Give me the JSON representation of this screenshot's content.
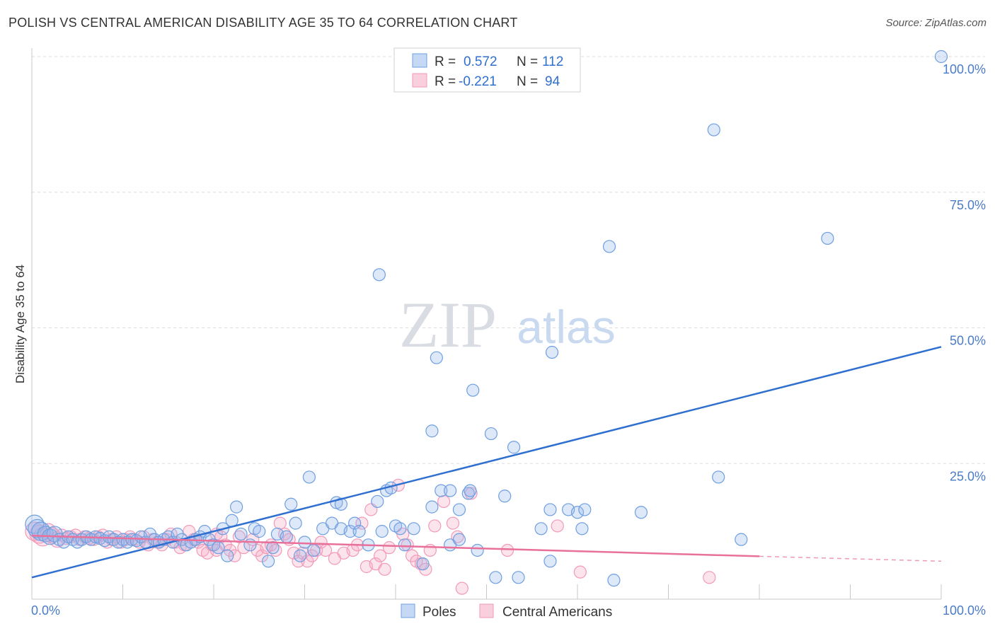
{
  "title": "POLISH VS CENTRAL AMERICAN DISABILITY AGE 35 TO 64 CORRELATION CHART",
  "source": "Source: ZipAtlas.com",
  "watermark": {
    "zip": "ZIP",
    "atlas": "atlas"
  },
  "colors": {
    "poles": "#6f9fe0",
    "poles_line": "#2f6fd0",
    "central": "#f29ab8",
    "central_line": "#e8709a",
    "axis_label": "#4a7cc7"
  },
  "legend": {
    "poles": {
      "r_label": "R =",
      "r_value": "0.572",
      "n_label": "N =",
      "n_value": "112"
    },
    "central": {
      "r_label": "R =",
      "r_value": "-0.221",
      "n_label": "N =",
      "n_value": "94"
    }
  },
  "bottom_legend": {
    "poles": "Poles",
    "central": "Central Americans"
  },
  "chart_data": {
    "type": "scatter",
    "title": "POLISH VS CENTRAL AMERICAN DISABILITY AGE 35 TO 64 CORRELATION CHART",
    "xlabel": "",
    "ylabel": "Disability Age 35 to 64",
    "xlim": [
      0,
      100
    ],
    "ylim": [
      0,
      100
    ],
    "x_tick_labels": {
      "min": "0.0%",
      "max": "100.0%"
    },
    "y_ticks": [
      25,
      50,
      75,
      100
    ],
    "y_tick_labels": [
      "25.0%",
      "50.0%",
      "75.0%",
      "100.0%"
    ],
    "series": [
      {
        "name": "Poles",
        "trend": {
          "x": [
            0,
            100
          ],
          "y": [
            4.0,
            46.5
          ]
        },
        "points": [
          [
            0.3,
            13.8
          ],
          [
            0.6,
            13.0
          ],
          [
            1.0,
            12.5
          ],
          [
            1.5,
            12.0
          ],
          [
            2.0,
            11.5
          ],
          [
            2.5,
            12.0
          ],
          [
            3.0,
            11.0
          ],
          [
            3.5,
            10.5
          ],
          [
            4.0,
            11.5
          ],
          [
            4.5,
            11.0
          ],
          [
            5.0,
            10.5
          ],
          [
            5.5,
            11.0
          ],
          [
            6.0,
            11.5
          ],
          [
            6.5,
            11.0
          ],
          [
            7.0,
            11.5
          ],
          [
            7.5,
            11.2
          ],
          [
            8.0,
            10.8
          ],
          [
            8.5,
            11.5
          ],
          [
            9.0,
            11.0
          ],
          [
            9.5,
            10.5
          ],
          [
            10.0,
            11.0
          ],
          [
            10.5,
            10.5
          ],
          [
            11.0,
            11.0
          ],
          [
            11.5,
            10.8
          ],
          [
            12.0,
            11.5
          ],
          [
            12.5,
            10.5
          ],
          [
            13.0,
            12.0
          ],
          [
            13.5,
            11.0
          ],
          [
            14.0,
            10.5
          ],
          [
            14.5,
            11.0
          ],
          [
            15.0,
            11.5
          ],
          [
            15.5,
            10.5
          ],
          [
            16.0,
            12.0
          ],
          [
            16.5,
            11.0
          ],
          [
            17.0,
            10.0
          ],
          [
            17.5,
            10.5
          ],
          [
            18.0,
            11.0
          ],
          [
            18.5,
            11.5
          ],
          [
            19.0,
            12.5
          ],
          [
            19.5,
            11.0
          ],
          [
            20.0,
            10.0
          ],
          [
            20.5,
            9.5
          ],
          [
            21.0,
            13.0
          ],
          [
            21.5,
            8.0
          ],
          [
            22.0,
            14.5
          ],
          [
            22.5,
            17.0
          ],
          [
            23.0,
            12.0
          ],
          [
            24.0,
            10.0
          ],
          [
            24.5,
            13.0
          ],
          [
            25.0,
            12.5
          ],
          [
            26.0,
            7.0
          ],
          [
            26.5,
            9.5
          ],
          [
            27.0,
            12.0
          ],
          [
            28.0,
            11.5
          ],
          [
            28.5,
            17.5
          ],
          [
            29.0,
            14.0
          ],
          [
            29.5,
            8.0
          ],
          [
            30.0,
            10.5
          ],
          [
            30.5,
            22.5
          ],
          [
            31.0,
            9.0
          ],
          [
            32.0,
            13.0
          ],
          [
            33.0,
            14.0
          ],
          [
            33.5,
            17.8
          ],
          [
            34.0,
            13.0
          ],
          [
            35.0,
            12.5
          ],
          [
            35.5,
            14.0
          ],
          [
            36.0,
            12.5
          ],
          [
            37.0,
            10.0
          ],
          [
            38.0,
            18.0
          ],
          [
            38.5,
            12.5
          ],
          [
            39.0,
            20.0
          ],
          [
            39.5,
            20.5
          ],
          [
            40.0,
            13.5
          ],
          [
            40.5,
            13.0
          ],
          [
            41.0,
            10.0
          ],
          [
            42.0,
            13.0
          ],
          [
            43.0,
            6.5
          ],
          [
            44.0,
            17.0
          ],
          [
            45.0,
            20.0
          ],
          [
            46.0,
            20.0
          ],
          [
            47.0,
            16.5
          ],
          [
            48.0,
            19.5
          ],
          [
            38.2,
            59.8
          ],
          [
            44.5,
            44.5
          ],
          [
            46.0,
            10.0
          ],
          [
            47.0,
            11.0
          ],
          [
            48.2,
            20.0
          ],
          [
            49.0,
            9.0
          ],
          [
            51.0,
            4.0
          ],
          [
            52.0,
            19.0
          ],
          [
            53.0,
            28.0
          ],
          [
            44.0,
            31.0
          ],
          [
            50.5,
            30.5
          ],
          [
            57.0,
            16.5
          ],
          [
            53.5,
            4.0
          ],
          [
            56.0,
            13.0
          ],
          [
            57.0,
            7.0
          ],
          [
            59.0,
            16.5
          ],
          [
            60.0,
            16.0
          ],
          [
            60.5,
            13.0
          ],
          [
            60.8,
            16.5
          ],
          [
            57.2,
            45.5
          ],
          [
            64.0,
            3.5
          ],
          [
            67.0,
            16.0
          ],
          [
            75.0,
            86.5
          ],
          [
            75.5,
            22.5
          ],
          [
            78.0,
            11.0
          ],
          [
            87.5,
            66.5
          ],
          [
            100.0,
            100.0
          ],
          [
            63.5,
            65.0
          ],
          [
            48.5,
            38.5
          ],
          [
            34.0,
            17.5
          ]
        ]
      },
      {
        "name": "Central Americans",
        "trend": {
          "x": [
            0,
            80,
            100
          ],
          "y": [
            11.7,
            7.9,
            7.0
          ],
          "dashed_from_x": 80
        },
        "points": [
          [
            0.3,
            12.5
          ],
          [
            0.8,
            12.0
          ],
          [
            1.2,
            11.5
          ],
          [
            1.8,
            12.5
          ],
          [
            2.2,
            11.8
          ],
          [
            2.8,
            11.0
          ],
          [
            3.3,
            11.8
          ],
          [
            3.8,
            11.2
          ],
          [
            4.3,
            11.5
          ],
          [
            4.8,
            11.8
          ],
          [
            5.3,
            11.0
          ],
          [
            5.8,
            11.5
          ],
          [
            6.3,
            11.2
          ],
          [
            6.8,
            11.0
          ],
          [
            7.3,
            11.5
          ],
          [
            7.8,
            11.8
          ],
          [
            8.3,
            10.5
          ],
          [
            8.8,
            11.0
          ],
          [
            9.3,
            11.5
          ],
          [
            9.8,
            10.5
          ],
          [
            10.3,
            11.0
          ],
          [
            10.8,
            11.5
          ],
          [
            11.3,
            11.0
          ],
          [
            11.8,
            10.5
          ],
          [
            12.3,
            11.5
          ],
          [
            12.8,
            10.0
          ],
          [
            13.3,
            11.0
          ],
          [
            13.8,
            10.5
          ],
          [
            14.3,
            10.0
          ],
          [
            14.8,
            11.0
          ],
          [
            15.3,
            12.0
          ],
          [
            15.8,
            10.5
          ],
          [
            16.3,
            9.5
          ],
          [
            16.8,
            10.0
          ],
          [
            17.3,
            12.5
          ],
          [
            17.8,
            11.0
          ],
          [
            18.3,
            10.5
          ],
          [
            18.8,
            9.0
          ],
          [
            19.3,
            8.5
          ],
          [
            19.8,
            10.0
          ],
          [
            20.3,
            9.0
          ],
          [
            20.8,
            11.5
          ],
          [
            21.3,
            10.0
          ],
          [
            21.8,
            9.0
          ],
          [
            22.3,
            8.0
          ],
          [
            22.8,
            11.5
          ],
          [
            23.3,
            9.5
          ],
          [
            24.3,
            11.0
          ],
          [
            24.8,
            9.0
          ],
          [
            25.3,
            8.0
          ],
          [
            25.8,
            9.5
          ],
          [
            26.3,
            10.0
          ],
          [
            26.8,
            9.0
          ],
          [
            27.3,
            14.0
          ],
          [
            27.8,
            12.0
          ],
          [
            28.3,
            11.0
          ],
          [
            28.8,
            8.5
          ],
          [
            29.3,
            7.0
          ],
          [
            29.8,
            8.5
          ],
          [
            30.3,
            7.0
          ],
          [
            30.8,
            8.0
          ],
          [
            31.3,
            9.0
          ],
          [
            31.8,
            10.5
          ],
          [
            32.3,
            9.0
          ],
          [
            33.3,
            7.5
          ],
          [
            34.3,
            8.5
          ],
          [
            35.3,
            9.0
          ],
          [
            35.8,
            10.0
          ],
          [
            36.3,
            14.0
          ],
          [
            36.8,
            6.0
          ],
          [
            37.3,
            16.5
          ],
          [
            37.8,
            6.5
          ],
          [
            38.3,
            8.0
          ],
          [
            38.8,
            5.5
          ],
          [
            39.3,
            9.5
          ],
          [
            40.3,
            21.0
          ],
          [
            40.8,
            12.0
          ],
          [
            41.3,
            10.0
          ],
          [
            41.8,
            8.0
          ],
          [
            42.3,
            7.0
          ],
          [
            42.8,
            6.5
          ],
          [
            43.3,
            5.5
          ],
          [
            43.8,
            9.0
          ],
          [
            44.3,
            13.5
          ],
          [
            45.3,
            18.0
          ],
          [
            46.3,
            14.0
          ],
          [
            46.8,
            11.5
          ],
          [
            47.3,
            2.0
          ],
          [
            48.3,
            19.5
          ],
          [
            52.3,
            9.0
          ],
          [
            57.8,
            13.5
          ],
          [
            60.3,
            5.0
          ],
          [
            74.5,
            4.0
          ],
          [
            20.3,
            12.0
          ]
        ]
      }
    ]
  }
}
